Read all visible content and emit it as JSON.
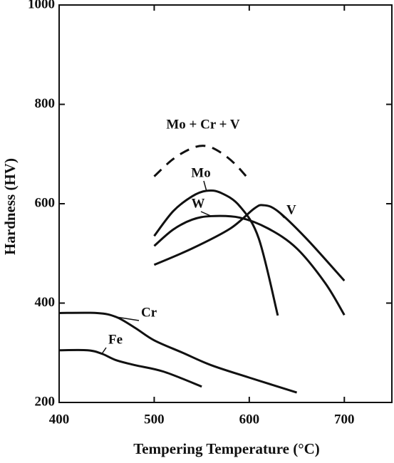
{
  "chart_data": {
    "type": "line",
    "xlabel": "Tempering Temperature (°C)",
    "ylabel": "Hardness (HV)",
    "xlim": [
      400,
      750
    ],
    "xticks": [
      400,
      500,
      600,
      700
    ],
    "ylim": [
      200,
      1000
    ],
    "yticks": [
      200,
      400,
      600,
      800,
      1000
    ],
    "grid": false,
    "series": [
      {
        "name": "Mo + Cr + V",
        "color": "#111111",
        "dashed": true,
        "x": [
          500,
          520,
          540,
          555,
          570,
          585,
          600
        ],
        "values": [
          655,
          690,
          712,
          716,
          703,
          680,
          648
        ]
      },
      {
        "name": "Mo",
        "color": "#111111",
        "dashed": false,
        "x": [
          500,
          520,
          540,
          555,
          570,
          590,
          610,
          630
        ],
        "values": [
          535,
          585,
          615,
          626,
          622,
          595,
          530,
          375
        ]
      },
      {
        "name": "W",
        "color": "#111111",
        "dashed": false,
        "x": [
          500,
          520,
          540,
          560,
          590,
          620,
          650,
          680,
          700
        ],
        "values": [
          515,
          548,
          568,
          575,
          572,
          550,
          510,
          440,
          376
        ]
      },
      {
        "name": "V",
        "color": "#111111",
        "dashed": false,
        "x": [
          500,
          540,
          580,
          605,
          615,
          630,
          660,
          700
        ],
        "values": [
          477,
          510,
          550,
          590,
          597,
          585,
          530,
          445
        ]
      },
      {
        "name": "Cr",
        "color": "#111111",
        "dashed": false,
        "x": [
          400,
          440,
          460,
          480,
          500,
          530,
          560,
          600,
          650
        ],
        "values": [
          380,
          380,
          372,
          350,
          325,
          300,
          275,
          250,
          220
        ]
      },
      {
        "name": "Fe",
        "color": "#111111",
        "dashed": false,
        "x": [
          400,
          430,
          445,
          460,
          480,
          510,
          550
        ],
        "values": [
          305,
          305,
          298,
          285,
          275,
          262,
          232
        ]
      }
    ]
  }
}
